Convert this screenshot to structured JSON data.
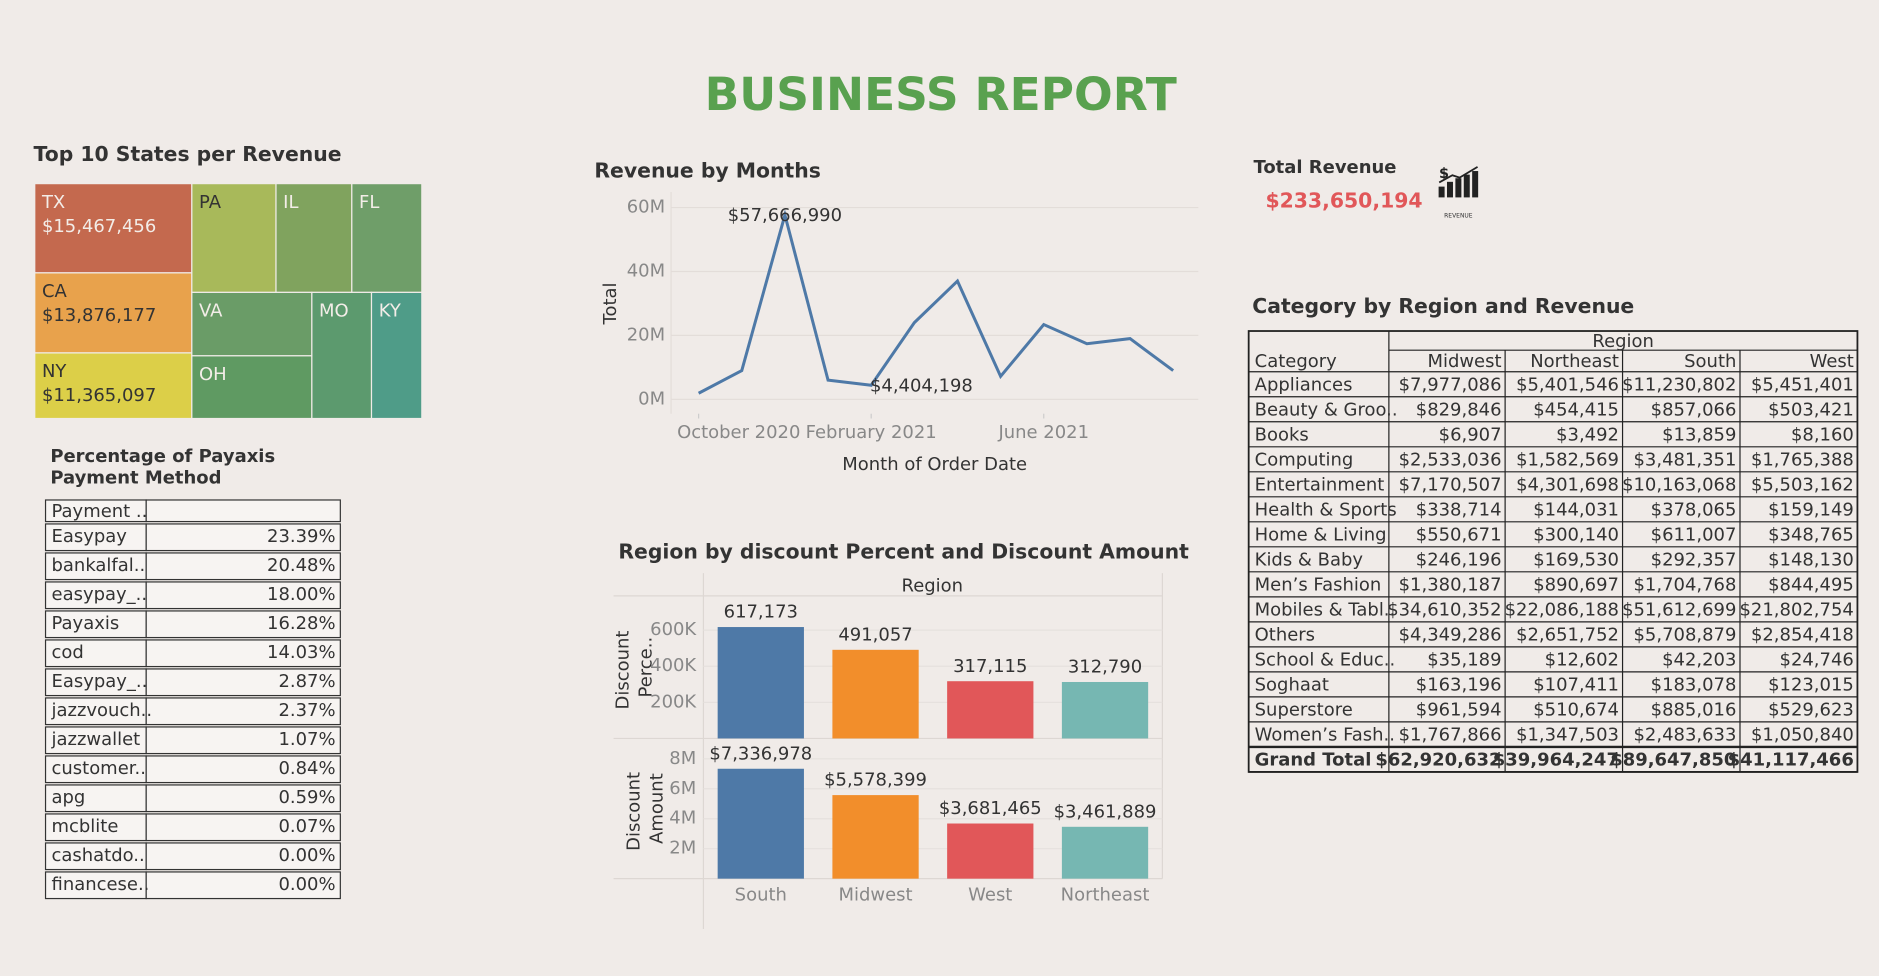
{
  "title": "BUSINESS  REPORT",
  "chart_data": [
    {
      "type": "treemap",
      "title": "Top 10 States per Revenue",
      "categories": [
        "TX",
        "CA",
        "NY",
        "PA",
        "IL",
        "FL",
        "VA",
        "OH",
        "MO",
        "KY"
      ],
      "values": [
        15467456,
        13876177,
        11365097,
        10100000,
        9100000,
        8400000,
        8400000,
        8300000,
        8300000,
        7000000
      ],
      "value_labels": [
        "$15,467,456",
        "$13,876,177",
        "$11,365,097",
        null,
        null,
        null,
        null,
        null,
        null,
        null
      ],
      "colors": [
        "#c4694e",
        "#e8a24c",
        "#dccf48",
        "#a8b95a",
        "#80a35e",
        "#6f9e69",
        "#6a9c67",
        "#5f9a62",
        "#5c9a6e",
        "#4f9c88"
      ]
    },
    {
      "type": "line",
      "title": "Revenue by Months",
      "xlabel": "Month of Order Date",
      "ylabel": "Total",
      "x": [
        "2020-10",
        "2020-11",
        "2020-12",
        "2021-01",
        "2021-02",
        "2021-03",
        "2021-04",
        "2021-05",
        "2021-06",
        "2021-07",
        "2021-08",
        "2021-09"
      ],
      "xticks": [
        {
          "value": "2020-10",
          "label": "October 2020"
        },
        {
          "value": "2021-02",
          "label": "February 2021"
        },
        {
          "value": "2021-06",
          "label": "June 2021"
        }
      ],
      "values": [
        1900000,
        9000000,
        57666990,
        6000000,
        4404198,
        24000000,
        37000000,
        7200000,
        23400000,
        17400000,
        19000000,
        9000000
      ],
      "value_labels": [
        null,
        null,
        "$57,666,990",
        null,
        "$4,404,198",
        null,
        null,
        null,
        null,
        null,
        null,
        null
      ],
      "color": "#4e79a7",
      "grid": true,
      "ylim": [
        0,
        63000000
      ],
      "yticks": [
        {
          "value": 0,
          "label": "0M"
        },
        {
          "value": 20000000,
          "label": "20M"
        },
        {
          "value": 40000000,
          "label": "40M"
        },
        {
          "value": 60000000,
          "label": "60M"
        }
      ]
    },
    {
      "type": "bar_panels",
      "title": "Region by discount Percent and Discount Amount",
      "header": "Region",
      "categories": [
        "South",
        "Midwest",
        "West",
        "Northeast"
      ],
      "colors": [
        "#4e79a7",
        "#f28e2b",
        "#e15759",
        "#76b7b2"
      ],
      "panels": [
        {
          "ylabel": "Discount Perce..",
          "values": [
            617173,
            491057,
            317115,
            312790
          ],
          "value_labels": [
            "617,173",
            "491,057",
            "317,115",
            "312,790"
          ],
          "ylim": [
            0,
            790000
          ],
          "yticks": [
            {
              "value": 200000,
              "label": "200K"
            },
            {
              "value": 400000,
              "label": "400K"
            },
            {
              "value": 600000,
              "label": "600K"
            }
          ]
        },
        {
          "ylabel": "Discount Amount",
          "values": [
            7336978,
            5578399,
            3681465,
            3461889
          ],
          "value_labels": [
            "$7,336,978",
            "$5,578,399",
            "$3,681,465",
            "$3,461,889"
          ],
          "ylim": [
            0,
            9360000
          ],
          "yticks": [
            {
              "value": 2000000,
              "label": "2M"
            },
            {
              "value": 4000000,
              "label": "4M"
            },
            {
              "value": 6000000,
              "label": "6M"
            },
            {
              "value": 8000000,
              "label": "8M"
            }
          ]
        }
      ]
    }
  ],
  "payment_table": {
    "title": "Percentage of Payaxis Payment Method",
    "header": "Payment ..",
    "rows": [
      [
        "Easypay",
        "23.39%"
      ],
      [
        "bankalfal..",
        "20.48%"
      ],
      [
        "easypay_..",
        "18.00%"
      ],
      [
        "Payaxis",
        "16.28%"
      ],
      [
        "cod",
        "14.03%"
      ],
      [
        "Easypay_..",
        "2.87%"
      ],
      [
        "jazzvouch..",
        "2.37%"
      ],
      [
        "jazzwallet",
        "1.07%"
      ],
      [
        "customer..",
        "0.84%"
      ],
      [
        "apg",
        "0.59%"
      ],
      [
        "mcblite",
        "0.07%"
      ],
      [
        "cashatdo..",
        "0.00%"
      ],
      [
        "financese..",
        "0.00%"
      ]
    ]
  },
  "kpi": {
    "label": "Total Revenue",
    "value": "$233,650,194",
    "icon_caption": "REVENUE"
  },
  "category_table": {
    "title": "Category by Region and Revenue",
    "group_header": "Region",
    "row_header": "Category",
    "columns": [
      "Midwest",
      "Northeast",
      "South",
      "West"
    ],
    "rows": [
      [
        "Appliances",
        "$7,977,086",
        "$5,401,546",
        "$11,230,802",
        "$5,451,401"
      ],
      [
        "Beauty & Groo..",
        "$829,846",
        "$454,415",
        "$857,066",
        "$503,421"
      ],
      [
        "Books",
        "$6,907",
        "$3,492",
        "$13,859",
        "$8,160"
      ],
      [
        "Computing",
        "$2,533,036",
        "$1,582,569",
        "$3,481,351",
        "$1,765,388"
      ],
      [
        "Entertainment",
        "$7,170,507",
        "$4,301,698",
        "$10,163,068",
        "$5,503,162"
      ],
      [
        "Health & Sports",
        "$338,714",
        "$144,031",
        "$378,065",
        "$159,149"
      ],
      [
        "Home & Living",
        "$550,671",
        "$300,140",
        "$611,007",
        "$348,765"
      ],
      [
        "Kids & Baby",
        "$246,196",
        "$169,530",
        "$292,357",
        "$148,130"
      ],
      [
        "Men’s Fashion",
        "$1,380,187",
        "$890,697",
        "$1,704,768",
        "$844,495"
      ],
      [
        "Mobiles & Tabl..",
        "$34,610,352",
        "$22,086,188",
        "$51,612,699",
        "$21,802,754"
      ],
      [
        "Others",
        "$4,349,286",
        "$2,651,752",
        "$5,708,879",
        "$2,854,418"
      ],
      [
        "School & Educ..",
        "$35,189",
        "$12,602",
        "$42,203",
        "$24,746"
      ],
      [
        "Soghaat",
        "$163,196",
        "$107,411",
        "$183,078",
        "$123,015"
      ],
      [
        "Superstore",
        "$961,594",
        "$510,674",
        "$885,016",
        "$529,623"
      ],
      [
        "Women’s Fash..",
        "$1,767,866",
        "$1,347,503",
        "$2,483,633",
        "$1,050,840"
      ]
    ],
    "total": [
      "Grand Total",
      "$62,920,632",
      "$39,964,247",
      "$89,647,850",
      "$41,117,466"
    ]
  }
}
